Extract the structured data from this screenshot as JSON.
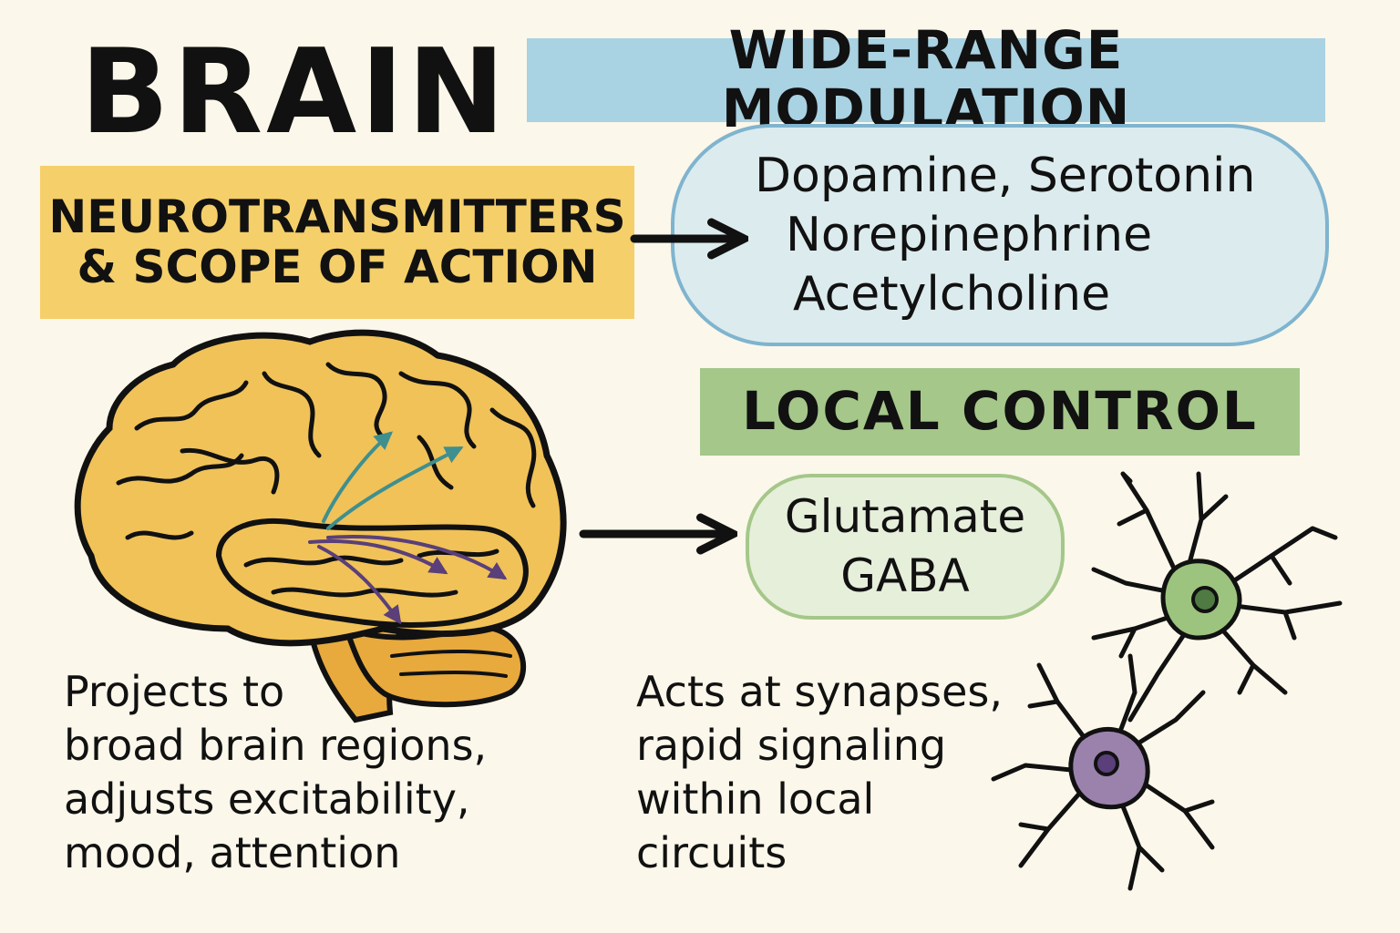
{
  "title": "BRAIN",
  "wide_range": {
    "heading": "WIDE-RANGE MODULATION",
    "items": [
      "Dopamine, Serotonin",
      "Norepinephrine",
      "Acetylcholine"
    ]
  },
  "category": {
    "line1": "NEUROTRANSMITTERS",
    "line2": "& SCOPE OF ACTION"
  },
  "local": {
    "heading": "LOCAL CONTROL",
    "items": [
      "Glutamate",
      "GABA"
    ]
  },
  "captions": {
    "left": [
      "Projects to",
      "broad brain regions,",
      "adjusts excitability,",
      "mood, attention"
    ],
    "right": [
      "Acts at synapses,",
      "rapid signaling",
      "within local",
      "circuits"
    ]
  },
  "colors": {
    "blue": "#a9d2e2",
    "yellow": "#f5cf6a",
    "green": "#a5c78a",
    "brain": "#f0c258",
    "neuron_green": "#9cc47e",
    "neuron_purple": "#9b82ad"
  },
  "icons": [
    "brain-illustration",
    "neuron-green-icon",
    "neuron-purple-icon",
    "arrow-right-icon"
  ]
}
